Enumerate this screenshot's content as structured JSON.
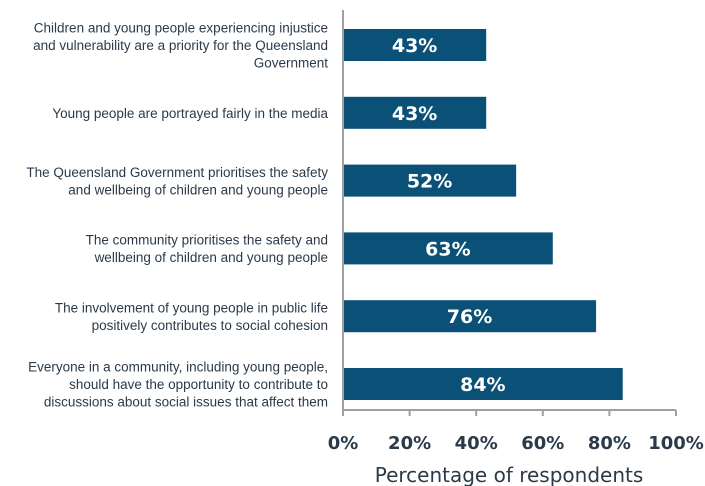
{
  "chart_data": {
    "type": "bar",
    "orientation": "horizontal",
    "categories": [
      "Children and young people experiencing injustice and vulnerability are a priority for the Queensland Government",
      "Young people are portrayed fairly in the media",
      "The Queensland Government prioritises the safety and wellbeing of children and young people",
      "The community prioritises the safety and wellbeing of children and young people",
      "The involvement of young people in public life positively contributes to social cohesion",
      "Everyone in a community, including young people, should have the opportunity to contribute to discussions about social issues that affect them"
    ],
    "category_lines": [
      [
        "Children and young people experiencing injustice",
        "and vulnerability are a priority for the Queensland",
        "Government"
      ],
      [
        "Young people are portrayed fairly in the media"
      ],
      [
        "The Queensland Government prioritises the safety",
        "and wellbeing of children and young people"
      ],
      [
        "The community prioritises the safety and",
        "wellbeing of children and young people"
      ],
      [
        "The involvement of young people in public life",
        "positively contributes to social cohesion"
      ],
      [
        "Everyone in a community, including young people,",
        "should have the opportunity to contribute to",
        "discussions about social issues that affect them"
      ]
    ],
    "values": [
      43,
      43,
      52,
      63,
      76,
      84
    ],
    "data_labels": [
      "43%",
      "43%",
      "52%",
      "63%",
      "76%",
      "84%"
    ],
    "x_ticks": [
      0,
      20,
      40,
      60,
      80,
      100
    ],
    "x_tick_labels": [
      "0%",
      "20%",
      "40%",
      "60%",
      "80%",
      "100%"
    ],
    "xlim": [
      0,
      100
    ],
    "xlabel": "Percentage of respondents",
    "ylabel": "",
    "title": "",
    "grid": false,
    "bar_color": "#0b5077",
    "axis_color": "#a0a0a0",
    "text_color": "#2b3a4a"
  }
}
